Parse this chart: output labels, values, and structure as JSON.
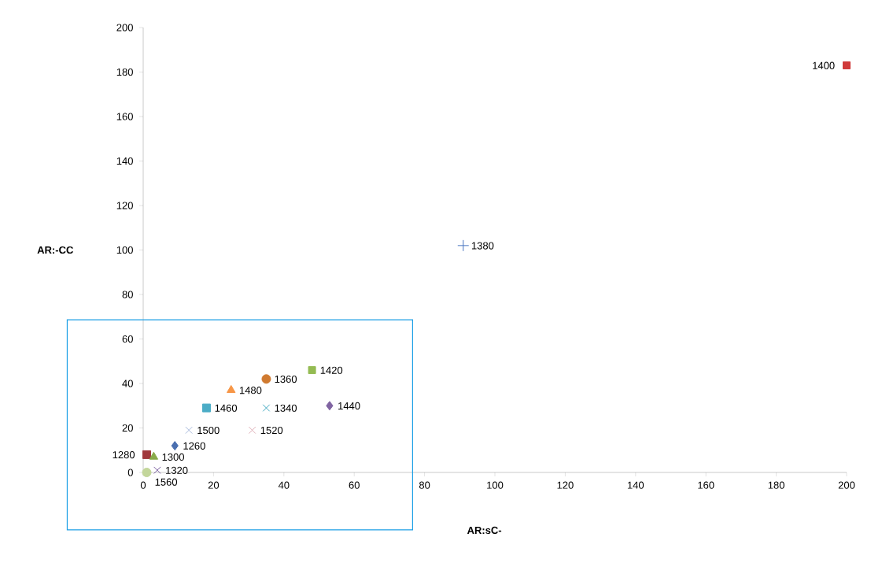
{
  "chart_data": {
    "type": "scatter",
    "xlabel": "AR:sC-",
    "ylabel": "AR:-CC",
    "xlim": [
      0,
      200
    ],
    "ylim": [
      0,
      200
    ],
    "xticks": [
      0,
      20,
      40,
      60,
      80,
      100,
      120,
      140,
      160,
      180,
      200
    ],
    "yticks": [
      0,
      20,
      40,
      60,
      80,
      100,
      120,
      140,
      160,
      180,
      200
    ],
    "grid": false,
    "series": [
      {
        "name": "1260",
        "color": "#4a6fb0",
        "x": [
          9
        ],
        "values": [
          12
        ],
        "marker": "diamond"
      },
      {
        "name": "1280",
        "color": "#a0393c",
        "x": [
          1
        ],
        "values": [
          8
        ],
        "marker": "square"
      },
      {
        "name": "1300",
        "color": "#8aaa4a",
        "x": [
          3
        ],
        "values": [
          7
        ],
        "marker": "triangle"
      },
      {
        "name": "1320",
        "color": "#7b5fa0",
        "x": [
          4
        ],
        "values": [
          1
        ],
        "marker": "cross"
      },
      {
        "name": "1340",
        "color": "#3fa8c0",
        "x": [
          35
        ],
        "values": [
          29
        ],
        "marker": "cross"
      },
      {
        "name": "1360",
        "color": "#d07a30",
        "x": [
          35
        ],
        "values": [
          42
        ],
        "marker": "circle"
      },
      {
        "name": "1380",
        "color": "#4a76c0",
        "x": [
          91
        ],
        "values": [
          102
        ],
        "marker": "plus"
      },
      {
        "name": "1400",
        "color": "#d03a3a",
        "x": [
          200
        ],
        "values": [
          183
        ],
        "marker": "square"
      },
      {
        "name": "1420",
        "color": "#94bb52",
        "x": [
          48
        ],
        "values": [
          46
        ],
        "marker": "square"
      },
      {
        "name": "1440",
        "color": "#8064a2",
        "x": [
          53
        ],
        "values": [
          30
        ],
        "marker": "diamond"
      },
      {
        "name": "1460",
        "color": "#4bacc6",
        "x": [
          18
        ],
        "values": [
          29
        ],
        "marker": "square"
      },
      {
        "name": "1480",
        "color": "#f79646",
        "x": [
          25
        ],
        "values": [
          37
        ],
        "marker": "triangle"
      },
      {
        "name": "1500",
        "color": "#aabbdd",
        "x": [
          13
        ],
        "values": [
          19
        ],
        "marker": "cross"
      },
      {
        "name": "1520",
        "color": "#e0b0b8",
        "x": [
          31
        ],
        "values": [
          19
        ],
        "marker": "cross"
      },
      {
        "name": "1560",
        "color": "#c3d69b",
        "x": [
          1
        ],
        "values": [
          0
        ],
        "marker": "circle"
      }
    ]
  }
}
